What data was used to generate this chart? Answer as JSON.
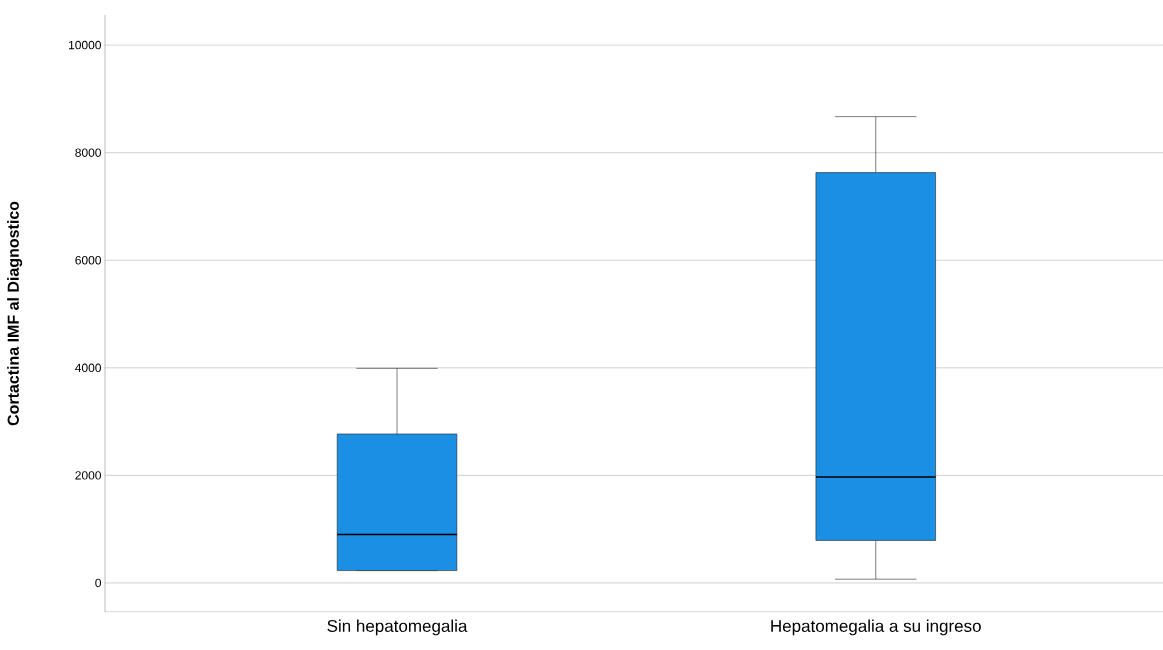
{
  "chart_data": {
    "type": "box",
    "ylabel": "Cortactina IMF al Diagnostico",
    "categories": [
      "Sin hepatomegalia",
      "Hepatomegalia a su ingreso"
    ],
    "boxes": [
      {
        "low": 230,
        "q1": 230,
        "median": 900,
        "q3": 2770,
        "high": 3990
      },
      {
        "low": 70,
        "q1": 790,
        "median": 1970,
        "q3": 7630,
        "high": 8670
      }
    ],
    "color": "#1a8fe3",
    "ylim": [
      -540,
      10560
    ],
    "yticks": [
      0,
      2000,
      4000,
      6000,
      8000,
      10000
    ],
    "grid": "y"
  }
}
